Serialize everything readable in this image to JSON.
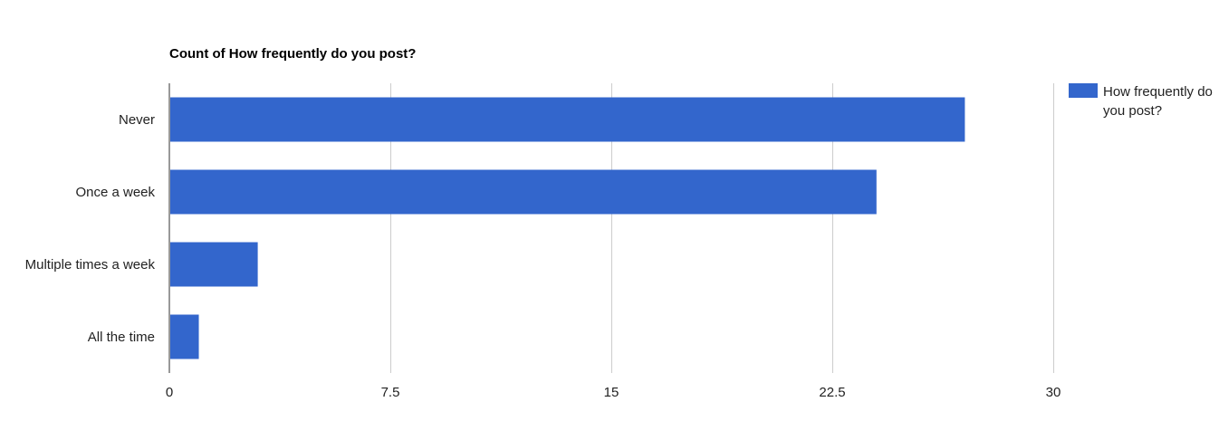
{
  "chart_data": {
    "type": "bar",
    "orientation": "horizontal",
    "title": "Count of How frequently do you post?",
    "categories": [
      "Never",
      "Once a week",
      "Multiple times a week",
      "All the time"
    ],
    "series": [
      {
        "name": "How frequently do you post?",
        "values": [
          27,
          24,
          3,
          1
        ],
        "color": "#3366cc"
      }
    ],
    "xlim": [
      0,
      30
    ],
    "ticks": [
      0,
      7.5,
      15,
      22.5,
      30
    ],
    "tick_labels": [
      "0",
      "7.5",
      "15",
      "22.5",
      "30"
    ],
    "xlabel": "",
    "ylabel": "",
    "grid": true,
    "legend": {
      "position": "right",
      "lines": [
        "How frequently do",
        "you post?"
      ]
    }
  }
}
